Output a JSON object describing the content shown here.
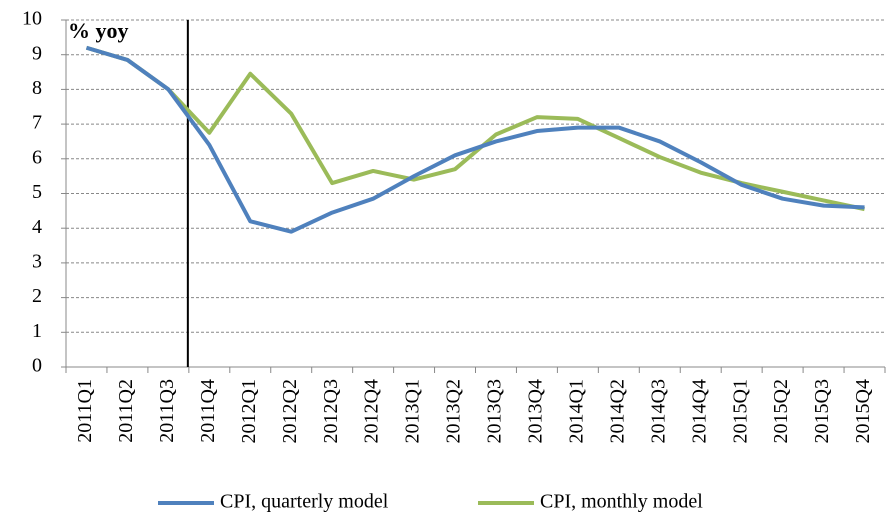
{
  "chart_data": {
    "type": "line",
    "annotation": "% yoy",
    "categories": [
      "2011Q1",
      "2011Q2",
      "2011Q3",
      "2011Q4",
      "2012Q1",
      "2012Q2",
      "2012Q3",
      "2012Q4",
      "2013Q1",
      "2013Q2",
      "2013Q3",
      "2013Q4",
      "2014Q1",
      "2014Q2",
      "2014Q3",
      "2014Q4",
      "2015Q1",
      "2015Q2",
      "2015Q3",
      "2015Q4"
    ],
    "series": [
      {
        "name": "CPI, quarterly model",
        "color": "#4f81bd",
        "values": [
          9.2,
          8.85,
          8.0,
          6.4,
          4.2,
          3.9,
          4.45,
          4.85,
          5.5,
          6.1,
          6.5,
          6.8,
          6.9,
          6.9,
          6.5,
          5.9,
          5.25,
          4.85,
          4.65,
          4.6
        ]
      },
      {
        "name": "CPI, monthly model",
        "color": "#9bbb59",
        "values": [
          9.2,
          8.85,
          8.0,
          6.75,
          8.45,
          7.3,
          5.3,
          5.65,
          5.4,
          5.7,
          6.7,
          7.2,
          7.15,
          6.6,
          6.05,
          5.6,
          5.3,
          5.05,
          4.8,
          4.55
        ]
      }
    ],
    "ylim": [
      0,
      10
    ],
    "yticks": [
      0,
      1,
      2,
      3,
      4,
      5,
      6,
      7,
      8,
      9,
      10
    ],
    "grid": true,
    "legend": "bottom"
  }
}
